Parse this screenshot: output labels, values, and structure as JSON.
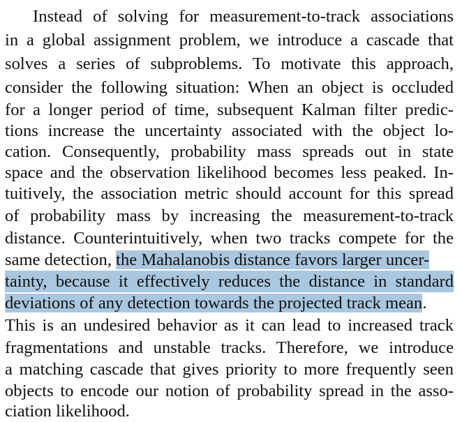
{
  "paragraph": {
    "lines": [
      "Instead of solving for measurement-to-track associations",
      "in a global assignment problem, we introduce a cascade that",
      "solves a series of subproblems.  To motivate this approach,",
      "consider the following situation: When an object is occluded",
      "for a longer period of time, subsequent Kalman filter predic-",
      "tions increase the uncertainty associated with the object lo-",
      "cation.  Consequently, probability mass spreads out in state",
      "space and the observation likelihood becomes less peaked. In-",
      "tuitively, the association metric should account for this spread",
      "of probability mass by increasing the measurement-to-track",
      "distance. Counterintuitively, when two tracks compete for the"
    ],
    "line12_plain": "same detection, ",
    "line12_highlight": "the Mahalanobis distance favors larger uncer-",
    "line13_highlight": "tainty, because it effectively reduces the distance in standard",
    "line14_highlight": "deviations of any detection towards the projected track mean",
    "line14_plain": ".",
    "lines_after": [
      "This is an undesired behavior as it can lead to increased track",
      "fragmentations and unstable tracks.  Therefore, we introduce",
      "a matching cascade that gives priority to more frequently seen",
      "objects to encode our notion of probability spread in the asso-",
      "ciation likelihood."
    ]
  },
  "colors": {
    "highlight": "#a9c7df",
    "text": "#111111",
    "background": "#ffffff"
  }
}
